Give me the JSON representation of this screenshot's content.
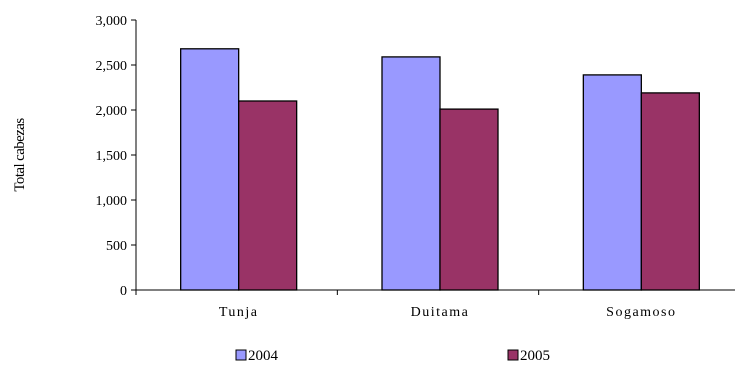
{
  "chart_data": {
    "type": "bar",
    "title": "",
    "xlabel": "",
    "ylabel": "Total cabezas",
    "categories": [
      "Tunja",
      "Duitama",
      "Sogamoso"
    ],
    "series": [
      {
        "name": "2004",
        "values": [
          2680,
          2590,
          2390
        ],
        "color": "#9999ff"
      },
      {
        "name": "2005",
        "values": [
          2100,
          2010,
          2190
        ],
        "color": "#993366"
      }
    ],
    "ylim": [
      0,
      3000
    ],
    "yticks": [
      0,
      500,
      1000,
      1500,
      2000,
      2500,
      3000
    ],
    "ytick_labels": [
      "0",
      "500",
      "1,000",
      "1,500",
      "2,000",
      "2,500",
      "3,000"
    ],
    "grid": false,
    "legend": "bottom"
  }
}
